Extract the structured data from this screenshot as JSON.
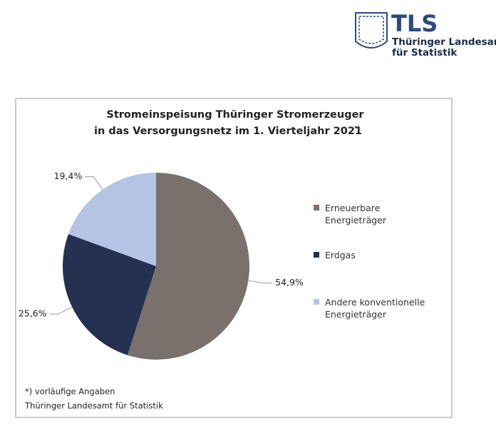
{
  "logo": {
    "abbr": "TLS",
    "name_lines": [
      "Thüringer Landesamt",
      "für Statistik"
    ]
  },
  "chart_data": {
    "type": "pie",
    "title": "Stromeinspeisung Thüringer Stromerzeuger",
    "subtitle": "in das Versorgungsnetz im 1. Vierteljahr 2021",
    "title_footnote_mark": "*)",
    "categories": [
      "Erneuerbare Energieträger",
      "Erdgas",
      "Andere konventionelle Energieträger"
    ],
    "values": [
      54.9,
      25.6,
      19.4
    ],
    "value_labels": [
      "54,9%",
      "25,6%",
      "19,4%"
    ],
    "colors": [
      "#7a716d",
      "#243150",
      "#b5c4e4"
    ],
    "legend": "right",
    "footnotes": [
      "*) vorläufige Angaben",
      "Thüringer Landesamt für Statistik"
    ]
  }
}
